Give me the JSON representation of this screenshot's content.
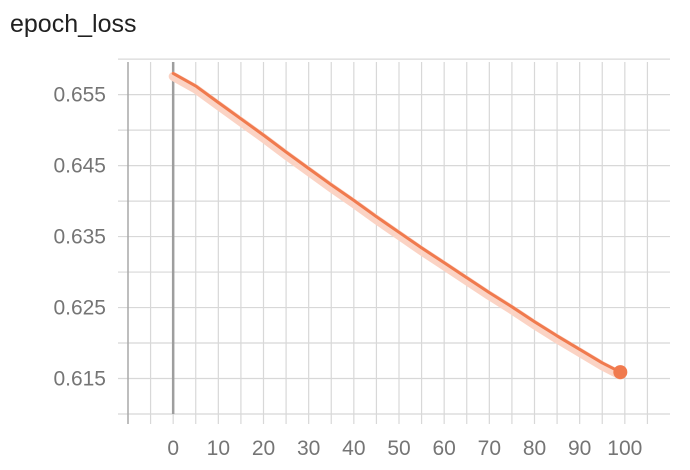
{
  "chart_data": {
    "type": "line",
    "title": "epoch_loss",
    "xlabel": "",
    "ylabel": "",
    "xlim": [
      -10,
      110
    ],
    "ylim": [
      0.61,
      0.6596
    ],
    "x_ticks": [
      0,
      10,
      20,
      30,
      40,
      50,
      60,
      70,
      80,
      90,
      100
    ],
    "y_ticks": [
      0.615,
      0.625,
      0.635,
      0.645,
      0.655
    ],
    "y_tick_labels": [
      "0.615",
      "0.625",
      "0.635",
      "0.645",
      "0.655"
    ],
    "grid": true,
    "colors": {
      "series": "#f07a4e",
      "series_band": "#fbd3c4",
      "grid": "#d8d8d8",
      "zero_line": "#9e9e9e"
    },
    "series": [
      {
        "x": [
          0,
          5,
          10,
          15,
          20,
          25,
          30,
          35,
          40,
          45,
          50,
          55,
          60,
          65,
          70,
          75,
          80,
          85,
          90,
          95,
          99
        ],
        "y": [
          0.658,
          0.6562,
          0.6539,
          0.6516,
          0.6493,
          0.6469,
          0.6446,
          0.6423,
          0.6401,
          0.6378,
          0.6356,
          0.6334,
          0.6313,
          0.6292,
          0.6271,
          0.6251,
          0.623,
          0.621,
          0.6191,
          0.6172,
          0.6159
        ]
      }
    ]
  }
}
